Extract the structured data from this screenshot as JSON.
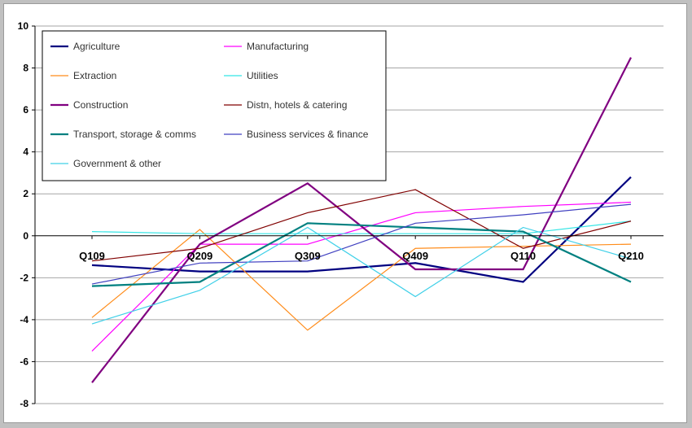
{
  "chart_data": {
    "type": "line",
    "title": "",
    "xlabel": "",
    "ylabel": "",
    "categories": [
      "Q109",
      "Q209",
      "Q309",
      "Q409",
      "Q110",
      "Q210"
    ],
    "ylim": [
      -8,
      10
    ],
    "yticks": [
      10,
      8,
      6,
      4,
      2,
      0,
      -2,
      -4,
      -6,
      -8
    ],
    "grid": "horizontal",
    "legend_position": "top-left",
    "series": [
      {
        "name": "Agriculture",
        "color": "#000080",
        "values": [
          -1.4,
          -1.7,
          -1.7,
          -1.3,
          -2.2,
          2.8
        ]
      },
      {
        "name": "Manufacturing",
        "color": "#ff00ff",
        "values": [
          -5.5,
          -0.4,
          -0.4,
          1.1,
          1.4,
          1.6
        ]
      },
      {
        "name": "Extraction",
        "color": "#ff8c1a",
        "values": [
          -3.9,
          0.3,
          -4.5,
          -0.6,
          -0.5,
          -0.4
        ]
      },
      {
        "name": "Utilities",
        "color": "#33e5e5",
        "values": [
          0.2,
          0.1,
          0.1,
          0.1,
          0.1,
          0.7
        ]
      },
      {
        "name": "Construction",
        "color": "#800080",
        "values": [
          -7.0,
          -0.4,
          2.5,
          -1.6,
          -1.6,
          8.5
        ]
      },
      {
        "name": "Distn, hotels & catering",
        "color": "#800000",
        "values": [
          -1.2,
          -0.6,
          1.1,
          2.2,
          -0.6,
          0.7
        ]
      },
      {
        "name": "Transport, storage & comms",
        "color": "#008080",
        "values": [
          -2.4,
          -2.2,
          0.6,
          0.4,
          0.2,
          -2.2
        ]
      },
      {
        "name": "Business services & finance",
        "color": "#4040c0",
        "values": [
          -2.3,
          -1.3,
          -1.2,
          0.6,
          1.0,
          1.5
        ]
      },
      {
        "name": "Government & other",
        "color": "#40d0e8",
        "values": [
          -4.2,
          -2.6,
          0.4,
          -2.9,
          0.4,
          -1.1
        ]
      }
    ]
  }
}
